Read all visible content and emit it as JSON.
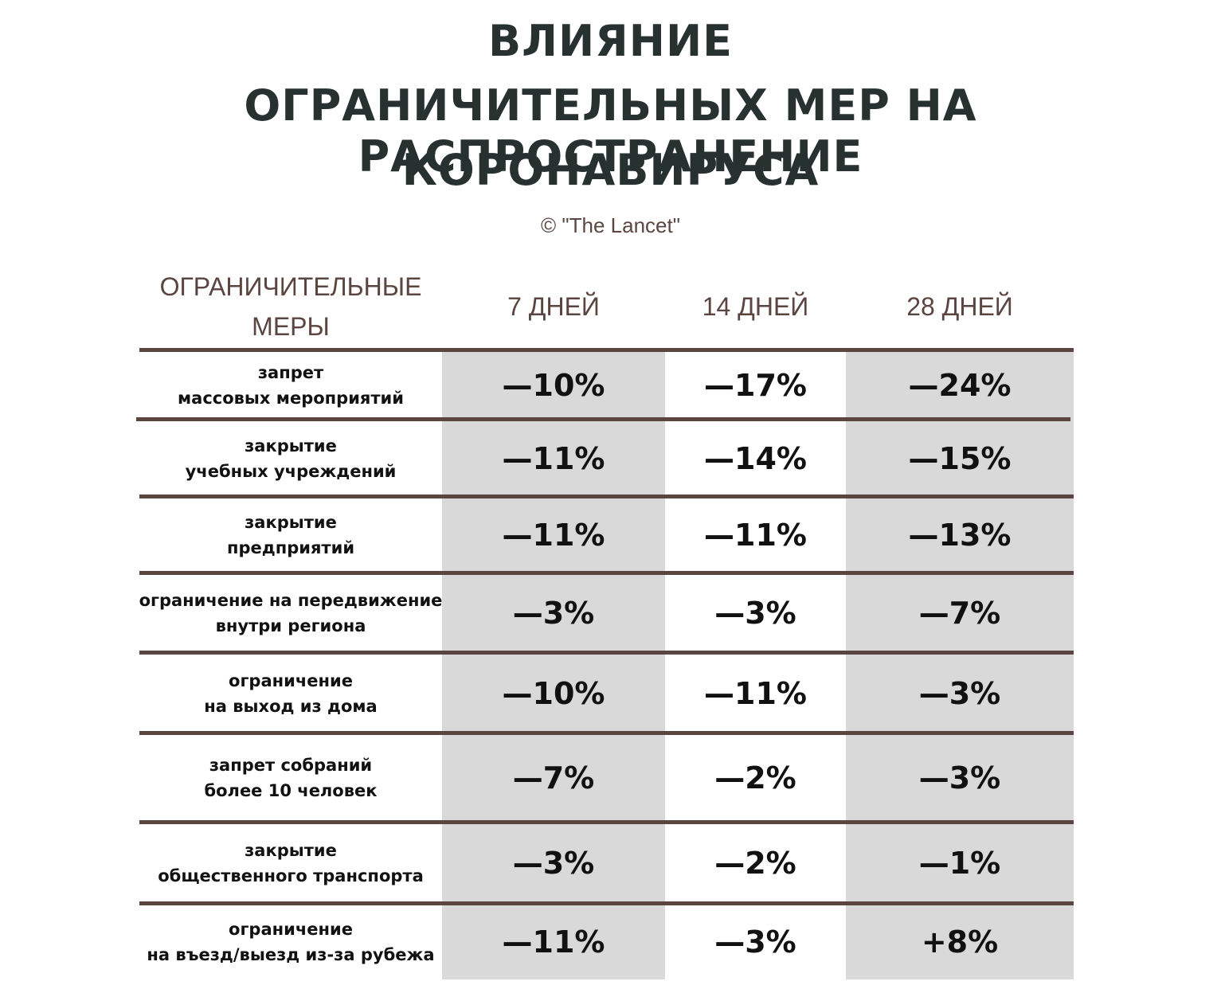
{
  "title": [
    "ВЛИЯНИЕ",
    "ОГРАНИЧИТЕЛЬНЫХ МЕР НА РАСПРОСТРАНЕНИЕ",
    "КОРОНАВИРУСА"
  ],
  "source": "© \"The Lancet\"",
  "table": {
    "header": [
      [
        "ОГРАНИЧИТЕЛЬНЫЕ",
        "МЕРЫ"
      ],
      [
        "7 ДНЕЙ"
      ],
      [
        "14 ДНЕЙ"
      ],
      [
        "28 ДНЕЙ"
      ]
    ],
    "rows": [
      {
        "measure": [
          "запрет",
          "массовых мероприятий"
        ],
        "values": [
          "—10%",
          "—17%",
          "—24%"
        ]
      },
      {
        "measure": [
          "закрытие",
          "учебных учреждений"
        ],
        "values": [
          "—11%",
          "—14%",
          "—15%"
        ]
      },
      {
        "measure": [
          "закрытие",
          "предприятий"
        ],
        "values": [
          "—11%",
          "—11%",
          "—13%"
        ]
      },
      {
        "measure": [
          "ограничение на передвижение",
          "внутри региона"
        ],
        "values": [
          "—3%",
          "—3%",
          "—7%"
        ]
      },
      {
        "measure": [
          "ограничение",
          "на выход из дома"
        ],
        "values": [
          "—10%",
          "—11%",
          "—3%"
        ]
      },
      {
        "measure": [
          "запрет собраний",
          "более 10 человек"
        ],
        "values": [
          "—7%",
          "—2%",
          "—3%"
        ]
      },
      {
        "measure": [
          "закрытие",
          "общественного транспорта"
        ],
        "values": [
          "—3%",
          "—2%",
          "—1%"
        ]
      },
      {
        "measure": [
          "ограничение",
          "на въезд/выезд из-за рубежа"
        ],
        "values": [
          "—11%",
          "—3%",
          "+8%"
        ]
      }
    ]
  }
}
